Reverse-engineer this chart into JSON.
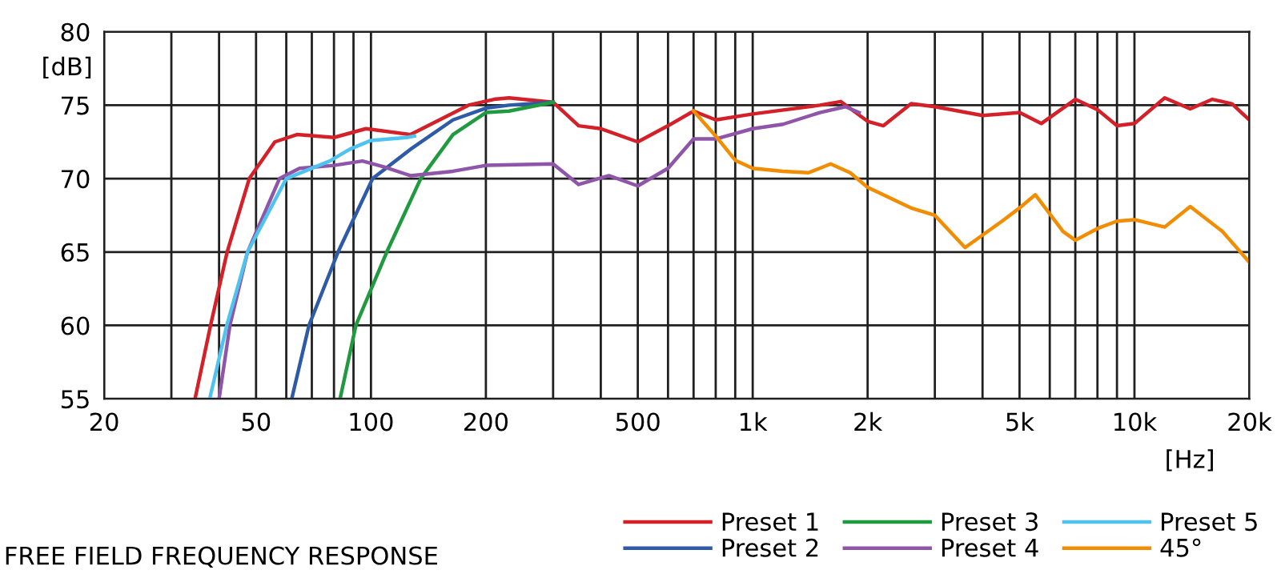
{
  "chart_data": {
    "type": "line",
    "title": "FREE FIELD FREQUENCY RESPONSE",
    "xlabel": "[Hz]",
    "ylabel": "[dB]",
    "log": "x",
    "xlim": [
      20,
      20000
    ],
    "ylim": [
      55,
      80
    ],
    "xticks": [
      20,
      {
        "value": 30,
        "label": null
      },
      {
        "value": 40,
        "label": null
      },
      50,
      {
        "value": 60,
        "label": null
      },
      {
        "value": 70,
        "label": null
      },
      {
        "value": 80,
        "label": null
      },
      {
        "value": 90,
        "label": null
      },
      100,
      200,
      {
        "value": 300,
        "label": null
      },
      {
        "value": 400,
        "label": null
      },
      500,
      {
        "value": 600,
        "label": null
      },
      {
        "value": 700,
        "label": null
      },
      {
        "value": 800,
        "label": null
      },
      {
        "value": 900,
        "label": null
      },
      {
        "value": 1000,
        "label": "1k"
      },
      {
        "value": 2000,
        "label": "2k"
      },
      {
        "value": 3000,
        "label": null
      },
      {
        "value": 4000,
        "label": null
      },
      {
        "value": 5000,
        "label": "5k"
      },
      {
        "value": 6000,
        "label": null
      },
      {
        "value": 7000,
        "label": null
      },
      {
        "value": 8000,
        "label": null
      },
      {
        "value": 9000,
        "label": null
      },
      {
        "value": 10000,
        "label": "10k"
      },
      {
        "value": 20000,
        "label": "20k"
      }
    ],
    "yticks": [
      55,
      60,
      65,
      70,
      75,
      80
    ],
    "grid": true,
    "legend": "bottom right",
    "line_style": "solid",
    "marker": "none",
    "series": [
      {
        "name": "Preset 1",
        "color": "#d42028",
        "x": [
          34.6,
          38,
          42,
          48,
          56,
          64,
          80,
          97,
          127,
          180,
          210,
          230,
          300,
          350,
          400,
          500,
          600,
          700,
          800,
          1000,
          1500,
          1700,
          2000,
          2200,
          2600,
          3000,
          4000,
          5000,
          5700,
          7000,
          8000,
          9000,
          10000,
          12000,
          14000,
          16000,
          18000,
          20000
        ],
        "values": [
          55,
          60,
          65,
          70,
          72.5,
          73,
          72.8,
          73.4,
          73,
          75,
          75.4,
          75.5,
          75.2,
          73.6,
          73.4,
          72.5,
          73.6,
          74.6,
          74,
          74.4,
          75,
          75.25,
          73.9,
          73.6,
          75.1,
          74.9,
          74.3,
          74.5,
          73.75,
          75.4,
          74.7,
          73.6,
          73.75,
          75.5,
          74.75,
          75.4,
          75.1,
          74
        ]
      },
      {
        "name": "Preset 2",
        "color": "#2e5aa8",
        "x": [
          62,
          68.8,
          82,
          101,
          127,
          164,
          200,
          230,
          300
        ],
        "values": [
          55,
          60,
          65,
          70,
          72,
          74,
          74.8,
          75,
          75.2
        ]
      },
      {
        "name": "Preset 3",
        "color": "#1f9a3f",
        "x": [
          83,
          91.3,
          110,
          135,
          164,
          200,
          230,
          300
        ],
        "values": [
          55,
          60,
          65,
          70,
          73,
          74.5,
          74.6,
          75.2
        ]
      },
      {
        "name": "Preset 4",
        "color": "#8e55a8",
        "x": [
          40,
          42.7,
          47.5,
          57.6,
          65,
          80,
          95,
          108,
          127,
          164,
          200,
          300,
          350,
          420,
          500,
          600,
          700,
          800,
          1000,
          1200,
          1500,
          1750,
          1900
        ],
        "values": [
          55,
          60,
          65,
          70,
          70.7,
          70.9,
          71.2,
          70.8,
          70.2,
          70.5,
          70.9,
          71,
          69.6,
          70.2,
          69.5,
          70.7,
          72.7,
          72.7,
          73.4,
          73.7,
          74.5,
          74.9,
          74.5
        ]
      },
      {
        "name": "Preset 5",
        "color": "#4fc3f0",
        "x": [
          37.8,
          41.9,
          47.5,
          60,
          78,
          88,
          100,
          124,
          130
        ],
        "values": [
          55,
          60,
          65,
          70,
          71.2,
          72,
          72.6,
          72.8,
          72.9
        ]
      },
      {
        "name": "45°",
        "color": "#f28c00",
        "x": [
          700,
          800,
          900,
          1000,
          1200,
          1400,
          1600,
          1800,
          2000,
          2600,
          3000,
          3600,
          4500,
          5000,
          5500,
          6500,
          7000,
          8000,
          9000,
          10000,
          12000,
          14000,
          17000,
          20000
        ],
        "values": [
          74.6,
          72.9,
          71.25,
          70.7,
          70.5,
          70.4,
          71,
          70.4,
          69.4,
          68,
          67.5,
          65.3,
          67.1,
          68,
          68.9,
          66.4,
          65.8,
          66.6,
          67.1,
          67.2,
          66.7,
          68.1,
          66.4,
          64.3
        ]
      }
    ]
  }
}
